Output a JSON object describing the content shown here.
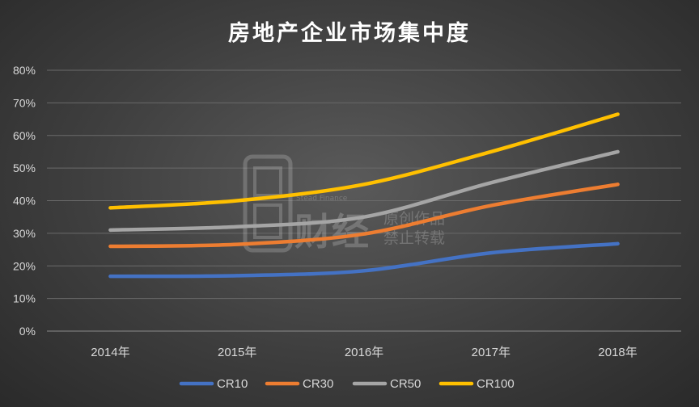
{
  "chart_data": {
    "type": "line",
    "title": "房地产企业市场集中度",
    "categories": [
      "2014年",
      "2015年",
      "2016年",
      "2017年",
      "2018年"
    ],
    "y_tick_labels": [
      "0%",
      "10%",
      "20%",
      "30%",
      "40%",
      "50%",
      "60%",
      "70%",
      "80%"
    ],
    "ylim": [
      0,
      80
    ],
    "grid": true,
    "legend_position": "bottom",
    "series": [
      {
        "name": "CR10",
        "color": "#4472c4",
        "values": [
          16.8,
          17.0,
          18.5,
          24.0,
          26.8
        ]
      },
      {
        "name": "CR30",
        "color": "#ed7d31",
        "values": [
          26.0,
          26.6,
          29.8,
          38.5,
          45.0
        ]
      },
      {
        "name": "CR50",
        "color": "#a5a5a5",
        "values": [
          31.0,
          32.0,
          35.0,
          45.5,
          55.0
        ]
      },
      {
        "name": "CR100",
        "color": "#ffc000",
        "values": [
          37.8,
          40.0,
          45.0,
          55.0,
          66.5
        ]
      }
    ]
  },
  "watermark": {
    "brand": "财经",
    "english": "Stead Finance",
    "line1": "原创作品",
    "line2": "禁止转载"
  }
}
